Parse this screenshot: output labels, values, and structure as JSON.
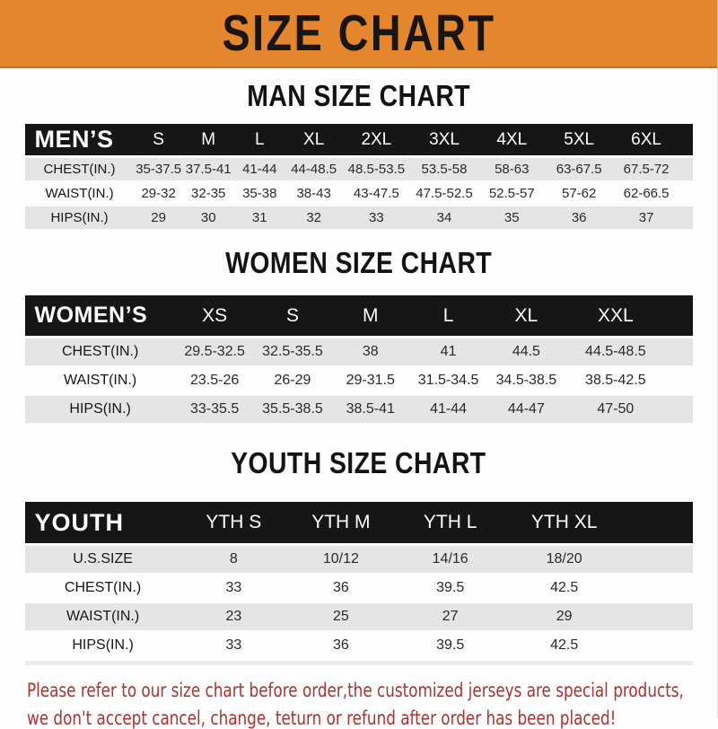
{
  "banner": {
    "title": "SIZE CHART",
    "bg_color": "#E3862D",
    "text_color": "#1A1512"
  },
  "sections": [
    {
      "heading": "MAN SIZE CHART",
      "header_label": "MEN’S",
      "columns": [
        "S",
        "M",
        "L",
        "XL",
        "2XL",
        "3XL",
        "4XL",
        "5XL",
        "6XL"
      ],
      "rows": [
        {
          "label": "CHEST(IN.)",
          "values": [
            "35-37.5",
            "37.5-41",
            "41-44",
            "44-48.5",
            "48.5-53.5",
            "53.5-58",
            "58-63",
            "63-67.5",
            "67.5-72"
          ]
        },
        {
          "label": "WAIST(IN.)",
          "values": [
            "29-32",
            "32-35",
            "35-38",
            "38-43",
            "43-47.5",
            "47.5-52.5",
            "52.5-57",
            "57-62",
            "62-66.5"
          ]
        },
        {
          "label": "HIPS(IN.)",
          "values": [
            "29",
            "30",
            "31",
            "32",
            "33",
            "34",
            "35",
            "36",
            "37"
          ]
        }
      ]
    },
    {
      "heading": "WOMEN SIZE CHART",
      "header_label": "WOMEN’S",
      "columns": [
        "XS",
        "S",
        "M",
        "L",
        "XL",
        "XXL"
      ],
      "rows": [
        {
          "label": "CHEST(IN.)",
          "values": [
            "29.5-32.5",
            "32.5-35.5",
            "38",
            "41",
            "44.5",
            "44.5-48.5"
          ]
        },
        {
          "label": "WAIST(IN.)",
          "values": [
            "23.5-26",
            "26-29",
            "29-31.5",
            "31.5-34.5",
            "34.5-38.5",
            "38.5-42.5"
          ]
        },
        {
          "label": "HIPS(IN.)",
          "values": [
            "33-35.5",
            "35.5-38.5",
            "38.5-41",
            "41-44",
            "44-47",
            "47-50"
          ]
        }
      ]
    },
    {
      "heading": "YOUTH SIZE CHART",
      "header_label": "YOUTH",
      "columns": [
        "YTH S",
        "YTH M",
        "YTH L",
        "YTH XL"
      ],
      "rows": [
        {
          "label": "U.S.SIZE",
          "values": [
            "8",
            "10/12",
            "14/16",
            "18/20"
          ]
        },
        {
          "label": "CHEST(IN.)",
          "values": [
            "33",
            "36",
            "39.5",
            "42.5"
          ]
        },
        {
          "label": "WAIST(IN.)",
          "values": [
            "23",
            "25",
            "27",
            "29"
          ]
        },
        {
          "label": "HIPS(IN.)",
          "values": [
            "33",
            "36",
            "39.5",
            "42.5"
          ]
        }
      ]
    }
  ],
  "footer": {
    "line1": "Please refer to our size chart before order,the customized jerseys are special products,",
    "line2": "we don't accept cancel, change, teturn or refund after order has been placed!",
    "text_color": "#A83333"
  },
  "colors": {
    "banner_orange": "#E3862D",
    "table_header_black": "#161616",
    "row_gray": "#E5E5E5",
    "row_white": "#FDFDFD",
    "disclaimer_red": "#A83333"
  }
}
